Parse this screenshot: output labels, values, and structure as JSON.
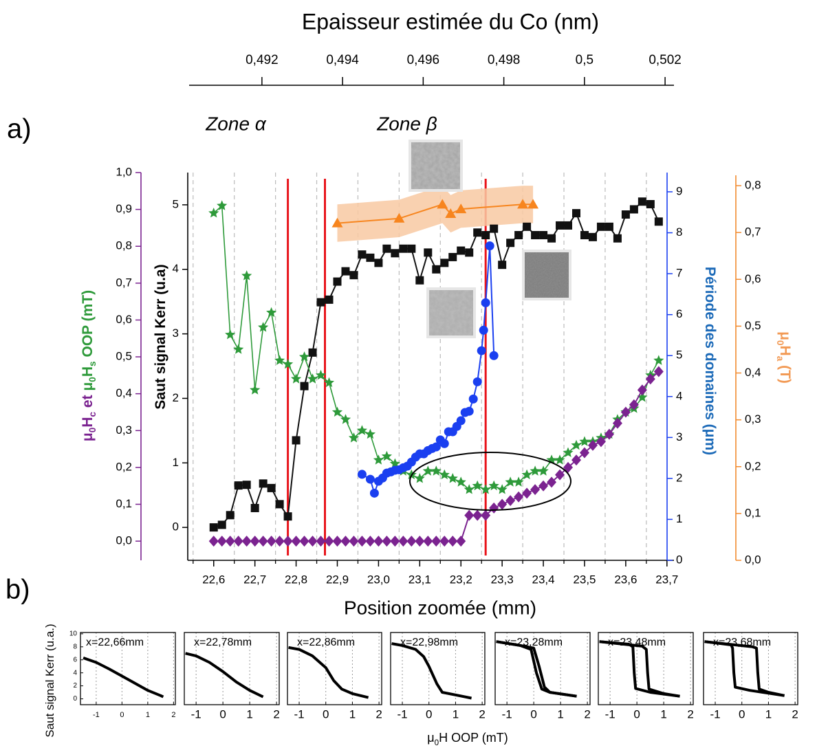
{
  "chart_data": [
    {
      "type": "line",
      "panel_label": "a)",
      "x2label": "Epaisseur estimée du Co (nm)",
      "x2lim": [
        0.49016,
        0.50222
      ],
      "x2ticks": [
        {
          "value": 0.492,
          "label": "0,492"
        },
        {
          "value": 0.494,
          "label": "0,494"
        },
        {
          "value": 0.496,
          "label": "0,496"
        },
        {
          "value": 0.498,
          "label": "0,498"
        },
        {
          "value": 0.5,
          "label": "0,5"
        },
        {
          "value": 0.502,
          "label": "0,502"
        }
      ],
      "xlabel": "Position zoomée (mm)",
      "xlim": [
        22.537,
        23.717
      ],
      "xticks": [
        {
          "value": 22.6,
          "label": "22,6"
        },
        {
          "value": 22.7,
          "label": "22,7"
        },
        {
          "value": 22.8,
          "label": "22,8"
        },
        {
          "value": 22.9,
          "label": "22,9"
        },
        {
          "value": 23.0,
          "label": "23,0"
        },
        {
          "value": 23.1,
          "label": "23,1"
        },
        {
          "value": 23.2,
          "label": "23,2"
        },
        {
          "value": 23.3,
          "label": "23,3"
        },
        {
          "value": 23.4,
          "label": "23,4"
        },
        {
          "value": 23.5,
          "label": "23,5"
        },
        {
          "value": 23.6,
          "label": "23,6"
        },
        {
          "value": 23.7,
          "label": "23,7"
        }
      ],
      "xgrid": [
        22.55,
        22.65,
        22.75,
        22.85,
        22.95,
        23.05,
        23.15,
        23.25,
        23.35,
        23.45,
        23.55,
        23.65
      ],
      "annotations": [
        "Zone α",
        "Zone β"
      ],
      "ylabel": [
        {
          "text": "μ",
          "color": "#7b2390"
        },
        {
          "text": "0",
          "sub": true,
          "color": "#7b2390"
        },
        {
          "text": "H",
          "color": "#7b2390"
        },
        {
          "text": "c",
          "sub": true,
          "color": "#7b2390"
        },
        {
          "text": " et ",
          "color": "#7b2390"
        },
        {
          "text": "μ",
          "color": "#2e9a3a"
        },
        {
          "text": "0",
          "sub": true,
          "color": "#2e9a3a"
        },
        {
          "text": "H",
          "color": "#2e9a3a"
        },
        {
          "text": "s",
          "sub": true,
          "color": "#2e9a3a"
        },
        {
          "text": " OOP (mT)",
          "color": "#2e9a3a"
        }
      ],
      "ylim": [
        -0.052,
        1.0
      ],
      "yticks": [
        {
          "value": 0.0,
          "label": "0,0"
        },
        {
          "value": 0.1,
          "label": "0,1"
        },
        {
          "value": 0.2,
          "label": "0,2"
        },
        {
          "value": 0.3,
          "label": "0,3"
        },
        {
          "value": 0.4,
          "label": "0,4"
        },
        {
          "value": 0.5,
          "label": "0,5"
        },
        {
          "value": 0.6,
          "label": "0,6"
        },
        {
          "value": 0.7,
          "label": "0,7"
        },
        {
          "value": 0.8,
          "label": "0,8"
        },
        {
          "value": 0.9,
          "label": "0,9"
        },
        {
          "value": 1.0,
          "label": "1,0"
        }
      ],
      "ycolor": "#7b2390",
      "y2label": [
        {
          "text": "Saut signal Kerr (u.a)",
          "color": "#000000"
        }
      ],
      "y2lim": [
        -0.51,
        5.5
      ],
      "y2ticks": [
        0,
        1,
        2,
        3,
        4,
        5
      ],
      "y2color": "#000000",
      "y3label": [
        {
          "text": "Période des domaines (μm)",
          "color": "#1c6ab8"
        }
      ],
      "y3lim": [
        0,
        9.47
      ],
      "y3ticks": [
        0,
        1,
        2,
        3,
        4,
        5,
        6,
        7,
        8,
        9
      ],
      "y3color": "#1a3ff0",
      "y4label": [
        {
          "text": "μ",
          "color": "#f29a55"
        },
        {
          "text": "0",
          "sub": true,
          "color": "#f29a55"
        },
        {
          "text": "H",
          "color": "#f29a55"
        },
        {
          "text": "a",
          "sub": true,
          "color": "#f29a55"
        },
        {
          "text": " (T)",
          "color": "#f29a55"
        }
      ],
      "y4lim": [
        0,
        0.828
      ],
      "y4ticks": [
        {
          "value": 0.0,
          "label": "0,0"
        },
        {
          "value": 0.1,
          "label": "0,1"
        },
        {
          "value": 0.2,
          "label": "0,2"
        },
        {
          "value": 0.3,
          "label": "0,3"
        },
        {
          "value": 0.4,
          "label": "0,4"
        },
        {
          "value": 0.5,
          "label": "0,5"
        },
        {
          "value": 0.6,
          "label": "0,6"
        },
        {
          "value": 0.7,
          "label": "0,7"
        },
        {
          "value": 0.8,
          "label": "0,8"
        }
      ],
      "y4color": "#f28a2e",
      "vlines": {
        "color": "#e8141b",
        "x": [
          22.78,
          22.87,
          23.26
        ]
      },
      "x": [
        22.6,
        22.62,
        22.64,
        22.66,
        22.68,
        22.7,
        22.72,
        22.74,
        22.76,
        22.78,
        22.8,
        22.82,
        22.84,
        22.86,
        22.88,
        22.9,
        22.92,
        22.94,
        22.96,
        22.98,
        23.0,
        23.02,
        23.04,
        23.06,
        23.08,
        23.1,
        23.12,
        23.14,
        23.16,
        23.18,
        23.2,
        23.22,
        23.24,
        23.26,
        23.28,
        23.3,
        23.32,
        23.34,
        23.36,
        23.38,
        23.4,
        23.42,
        23.44,
        23.46,
        23.48,
        23.5,
        23.52,
        23.54,
        23.56,
        23.58,
        23.6,
        23.62,
        23.64,
        23.66,
        23.68
      ],
      "series": [
        {
          "marker": "square",
          "color": "#111111",
          "axis": "y2",
          "values": [
            0.0,
            0.04,
            0.19,
            0.65,
            0.66,
            0.3,
            0.68,
            0.61,
            0.36,
            0.17,
            1.35,
            2.19,
            2.71,
            3.49,
            3.53,
            3.81,
            3.97,
            3.91,
            4.23,
            4.18,
            4.1,
            4.32,
            4.25,
            4.32,
            4.32,
            3.83,
            4.26,
            4.0,
            4.1,
            4.19,
            4.29,
            4.26,
            4.57,
            4.53,
            4.63,
            4.07,
            4.41,
            4.53,
            4.66,
            4.53,
            4.53,
            4.48,
            4.68,
            4.68,
            4.87,
            4.53,
            4.5,
            4.66,
            4.66,
            4.48,
            4.85,
            4.93,
            5.05,
            5.01,
            4.74
          ]
        },
        {
          "marker": "star",
          "color": "#2e9a3a",
          "axis": "y",
          "values": [
            0.89,
            0.91,
            0.56,
            0.52,
            0.72,
            0.41,
            0.58,
            0.62,
            0.49,
            0.48,
            0.44,
            0.5,
            0.44,
            0.45,
            0.43,
            0.35,
            0.33,
            0.28,
            0.3,
            0.29,
            0.22,
            0.23,
            0.21,
            0.19,
            0.18,
            0.17,
            0.19,
            0.19,
            0.18,
            0.17,
            0.16,
            0.14,
            0.15,
            0.14,
            0.15,
            0.14,
            0.16,
            0.16,
            0.18,
            0.19,
            0.19,
            0.22,
            0.22,
            0.24,
            0.26,
            0.27,
            0.27,
            0.28,
            0.29,
            0.33,
            0.35,
            0.36,
            0.39,
            0.45,
            0.49
          ]
        },
        {
          "marker": "diamond",
          "color": "#7b2390",
          "axis": "y",
          "values": [
            0,
            0,
            0,
            0,
            0,
            0,
            0,
            0,
            0,
            0,
            0,
            0,
            0,
            0,
            0,
            0,
            0,
            0,
            0,
            0,
            0,
            0,
            0,
            0,
            0,
            0,
            0,
            0,
            0,
            0,
            0,
            0.07,
            0.07,
            0.07,
            0.09,
            0.1,
            0.11,
            0.12,
            0.13,
            0.14,
            0.15,
            0.16,
            0.18,
            0.2,
            0.22,
            0.24,
            0.26,
            0.27,
            0.29,
            0.32,
            0.35,
            0.37,
            0.41,
            0.44,
            0.46
          ]
        },
        {
          "marker": "circle",
          "color": "#1a3ff0",
          "axis": "y3",
          "x": [
            22.96,
            22.98,
            22.99,
            23.0,
            23.01,
            23.02,
            23.03,
            23.04,
            23.05,
            23.06,
            23.07,
            23.08,
            23.09,
            23.1,
            23.11,
            23.12,
            23.13,
            23.14,
            23.15,
            23.16,
            23.17,
            23.18,
            23.19,
            23.2,
            23.21,
            23.22,
            23.23,
            23.24,
            23.25,
            23.255,
            23.26,
            23.27,
            23.28
          ],
          "values": [
            2.1,
            1.98,
            1.64,
            1.93,
            2.01,
            2.13,
            2.16,
            2.2,
            2.21,
            2.26,
            2.3,
            2.4,
            2.52,
            2.6,
            2.6,
            2.68,
            2.73,
            2.77,
            2.94,
            2.85,
            3.14,
            3.14,
            3.27,
            3.41,
            3.61,
            3.64,
            3.94,
            4.36,
            5.12,
            5.62,
            6.29,
            7.68,
            5.0
          ]
        },
        {
          "marker": "triangle",
          "color": "#f7851e",
          "axis": "y4",
          "band_color": "#f8c9a2",
          "x": [
            22.9,
            23.05,
            23.155,
            23.175,
            23.2,
            23.35,
            23.375
          ],
          "values": [
            0.72,
            0.73,
            0.76,
            0.74,
            0.75,
            0.76,
            0.76
          ],
          "errors": [
            0.04,
            0.04,
            0.04,
            0.04,
            0.04,
            0.04,
            0.04
          ]
        }
      ]
    },
    {
      "type": "line",
      "title": "x=22,66mm",
      "xlim": [
        -1.61,
        2.07
      ],
      "ylim": [
        -0.9,
        10.2
      ],
      "xticks": [
        -1,
        0,
        1,
        2
      ],
      "yticks": [
        0,
        2,
        4,
        6,
        8,
        10
      ],
      "grid": true,
      "series": [
        {
          "color": "#000000",
          "x": [
            -1.5,
            -1,
            -0.5,
            0,
            0.5,
            1,
            1.5,
            1.6
          ],
          "values": [
            6.3,
            5.6,
            4.6,
            3.5,
            2.4,
            1.3,
            0.5,
            0.3
          ]
        }
      ]
    },
    {
      "type": "line",
      "title": "x=22,78mm",
      "xlim": [
        -1.44,
        2.1
      ],
      "ylim": [
        -0.9,
        10.2
      ],
      "xticks": [
        -1,
        0,
        1,
        2
      ],
      "grid": true,
      "series": [
        {
          "color": "#000000",
          "x": [
            -1.4,
            -1,
            -0.5,
            0,
            0.5,
            1,
            1.5
          ],
          "values": [
            7.0,
            6.6,
            5.6,
            4.2,
            2.6,
            1.3,
            0.3
          ]
        }
      ]
    },
    {
      "type": "line",
      "title": "x=22,86mm",
      "xlim": [
        -1.44,
        2.1
      ],
      "ylim": [
        -0.9,
        10.2
      ],
      "xticks": [
        -1,
        0,
        1,
        2
      ],
      "grid": true,
      "series": [
        {
          "color": "#000000",
          "x": [
            -1.4,
            -1,
            -0.5,
            0,
            0.3,
            0.6,
            1,
            1.6
          ],
          "values": [
            7.9,
            7.6,
            6.6,
            4.8,
            2.8,
            1.5,
            0.8,
            0.2
          ]
        }
      ]
    },
    {
      "type": "line",
      "title": "x=22,98mm",
      "xlim": [
        -1.44,
        2.1
      ],
      "ylim": [
        -0.9,
        10.2
      ],
      "xticks": [
        -1,
        0,
        1,
        2
      ],
      "grid": true,
      "series": [
        {
          "color": "#000000",
          "x": [
            -1.4,
            -1,
            -0.5,
            -0.2,
            0,
            0.3,
            0.5,
            1,
            1.6
          ],
          "values": [
            8.5,
            8.2,
            7.6,
            6.5,
            5.0,
            2.3,
            1.0,
            0.6,
            0.1
          ]
        }
      ]
    },
    {
      "type": "line",
      "title": "x=23,28mm",
      "xlim": [
        -1.44,
        2.1
      ],
      "ylim": [
        -0.9,
        10.2
      ],
      "xticks": [
        -1,
        0,
        1,
        2
      ],
      "grid": true,
      "series": [
        {
          "color": "#000000",
          "x": [
            -1.4,
            -0.5,
            -0.1,
            0.1,
            0.3,
            0.6,
            1.6
          ],
          "values": [
            8.8,
            8.2,
            7.6,
            4.0,
            1.5,
            1.0,
            0.4
          ]
        },
        {
          "color": "#000000",
          "x": [
            -1.4,
            -0.5,
            0,
            0.2,
            0.4,
            0.6,
            1.6
          ],
          "values": [
            8.8,
            8.2,
            7.8,
            5.0,
            1.8,
            1.0,
            0.4
          ]
        }
      ]
    },
    {
      "type": "line",
      "title": "x=23,48mm",
      "xlim": [
        -1.44,
        2.1
      ],
      "ylim": [
        -0.9,
        10.2
      ],
      "xticks": [
        -1,
        0,
        1,
        2
      ],
      "grid": true,
      "series": [
        {
          "color": "#000000",
          "x": [
            -1.4,
            -0.3,
            -0.15,
            -0.1,
            -0.05,
            0.5,
            1.6
          ],
          "values": [
            8.8,
            8.4,
            8.0,
            4.0,
            1.6,
            1.0,
            0.4
          ]
        },
        {
          "color": "#000000",
          "x": [
            -1.4,
            0.2,
            0.35,
            0.4,
            0.45,
            1,
            1.6
          ],
          "values": [
            8.8,
            8.1,
            7.6,
            4.0,
            1.5,
            0.8,
            0.4
          ]
        }
      ]
    },
    {
      "type": "line",
      "title": "x=23,68mm",
      "xlim": [
        -1.44,
        2.1
      ],
      "ylim": [
        -0.9,
        10.2
      ],
      "xticks": [
        -1,
        0,
        1,
        2
      ],
      "grid": true,
      "series": [
        {
          "color": "#000000",
          "x": [
            -1.4,
            -0.4,
            -0.35,
            -0.3,
            -0.25,
            0.3,
            1.6
          ],
          "values": [
            8.8,
            8.3,
            7.8,
            4.0,
            1.8,
            1.3,
            0.5
          ]
        },
        {
          "color": "#000000",
          "x": [
            -1.4,
            0.4,
            0.55,
            0.6,
            0.65,
            1,
            1.6
          ],
          "values": [
            8.8,
            8.0,
            7.8,
            4.0,
            1.5,
            1.0,
            0.5
          ]
        }
      ]
    }
  ],
  "panel_b": {
    "label": "b)",
    "ylabel": [
      {
        "text": "Saut signal Kerr (u.a.)"
      }
    ],
    "xlabel": [
      {
        "text": "μ"
      },
      {
        "text": "0",
        "sub": true
      },
      {
        "text": "H OOP (mT)"
      }
    ]
  }
}
